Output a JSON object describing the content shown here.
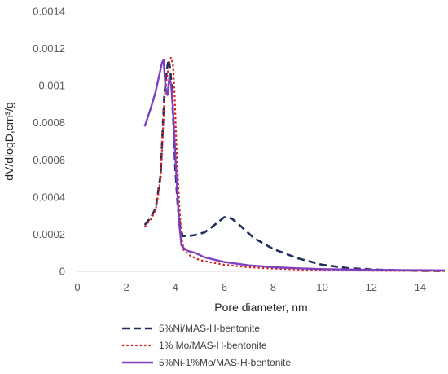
{
  "chart_data": {
    "type": "line",
    "xlabel": "Pore diameter, nm",
    "ylabel": "dV/dlogD,cm³/g",
    "xlim": [
      0,
      15
    ],
    "ylim": [
      0,
      0.0014
    ],
    "x_ticks": [
      0,
      2,
      4,
      6,
      8,
      10,
      12,
      14
    ],
    "x_tick_labels": [
      "0",
      "2",
      "4",
      "6",
      "8",
      "10",
      "12",
      "14"
    ],
    "y_ticks": [
      0,
      0.0002,
      0.0004,
      0.0006,
      0.0008,
      0.001,
      0.0012,
      0.0014
    ],
    "y_tick_labels": [
      "0",
      "0.0002",
      "0.0004",
      "0.0006",
      "0.0008",
      "0.001",
      "0.0012",
      "0.0014"
    ],
    "grid": false,
    "legend_position": "bottom",
    "series": [
      {
        "name": "5%Ni/MAS-H-bentonite",
        "style": "dashed",
        "color": "#1f2d5c",
        "x": [
          2.75,
          3.0,
          3.2,
          3.4,
          3.55,
          3.65,
          3.72,
          3.78,
          3.85,
          3.92,
          4.0,
          4.1,
          4.2,
          4.3,
          4.5,
          4.8,
          5.2,
          5.6,
          6.0,
          6.3,
          6.7,
          7.2,
          8.0,
          9.0,
          10.0,
          11.0,
          12.0,
          13.0,
          14.0,
          15.0
        ],
        "y": [
          0.00025,
          0.00029,
          0.00034,
          0.00052,
          0.00095,
          0.00108,
          0.00114,
          0.0011,
          0.001,
          0.0008,
          0.00055,
          0.00035,
          0.00024,
          0.00019,
          0.00019,
          0.000195,
          0.00021,
          0.00025,
          0.000292,
          0.000285,
          0.00024,
          0.00018,
          0.00012,
          7e-05,
          3.5e-05,
          1.8e-05,
          1e-05,
          6e-06,
          3e-06,
          2e-06
        ]
      },
      {
        "name": "1% Mo/MAS-H-bentonite",
        "style": "dotted",
        "color": "#d42020",
        "x": [
          2.75,
          3.0,
          3.2,
          3.4,
          3.55,
          3.65,
          3.75,
          3.82,
          3.9,
          3.97,
          4.05,
          4.15,
          4.25,
          4.35,
          4.6,
          5.0,
          6.0,
          7.0,
          8.0,
          9.0,
          10.0,
          11.0,
          12.0,
          13.0,
          14.0,
          15.0
        ],
        "y": [
          0.00024,
          0.00028,
          0.00033,
          0.0005,
          0.00092,
          0.00104,
          0.00112,
          0.00115,
          0.00112,
          0.00095,
          0.00065,
          0.00038,
          0.00018,
          0.00011,
          8.5e-05,
          6e-05,
          3.5e-05,
          2.2e-05,
          1.5e-05,
          1e-05,
          7e-06,
          5e-06,
          4e-06,
          3e-06,
          3e-06,
          2e-06
        ]
      },
      {
        "name": "5%Ni-1%Mo/MAS-H-bentonite",
        "style": "solid",
        "color": "#7f3fbf",
        "x": [
          2.75,
          3.0,
          3.2,
          3.35,
          3.45,
          3.52,
          3.6,
          3.68,
          3.75,
          3.82,
          3.88,
          3.95,
          4.05,
          4.15,
          4.25,
          4.35,
          4.5,
          4.8,
          5.2,
          6.0,
          7.0,
          8.0,
          9.0,
          10.0,
          11.0,
          12.0,
          13.0,
          14.0,
          15.0
        ],
        "y": [
          0.00078,
          0.00088,
          0.00097,
          0.00106,
          0.00112,
          0.00114,
          0.00099,
          0.00095,
          0.00104,
          0.00101,
          0.00093,
          0.00075,
          0.0005,
          0.00027,
          0.00014,
          0.000125,
          0.00011,
          0.0001,
          7.5e-05,
          5e-05,
          3.2e-05,
          2.2e-05,
          1.6e-05,
          1.2e-05,
          1e-05,
          8e-06,
          7e-06,
          6e-06,
          5e-06
        ]
      }
    ]
  }
}
